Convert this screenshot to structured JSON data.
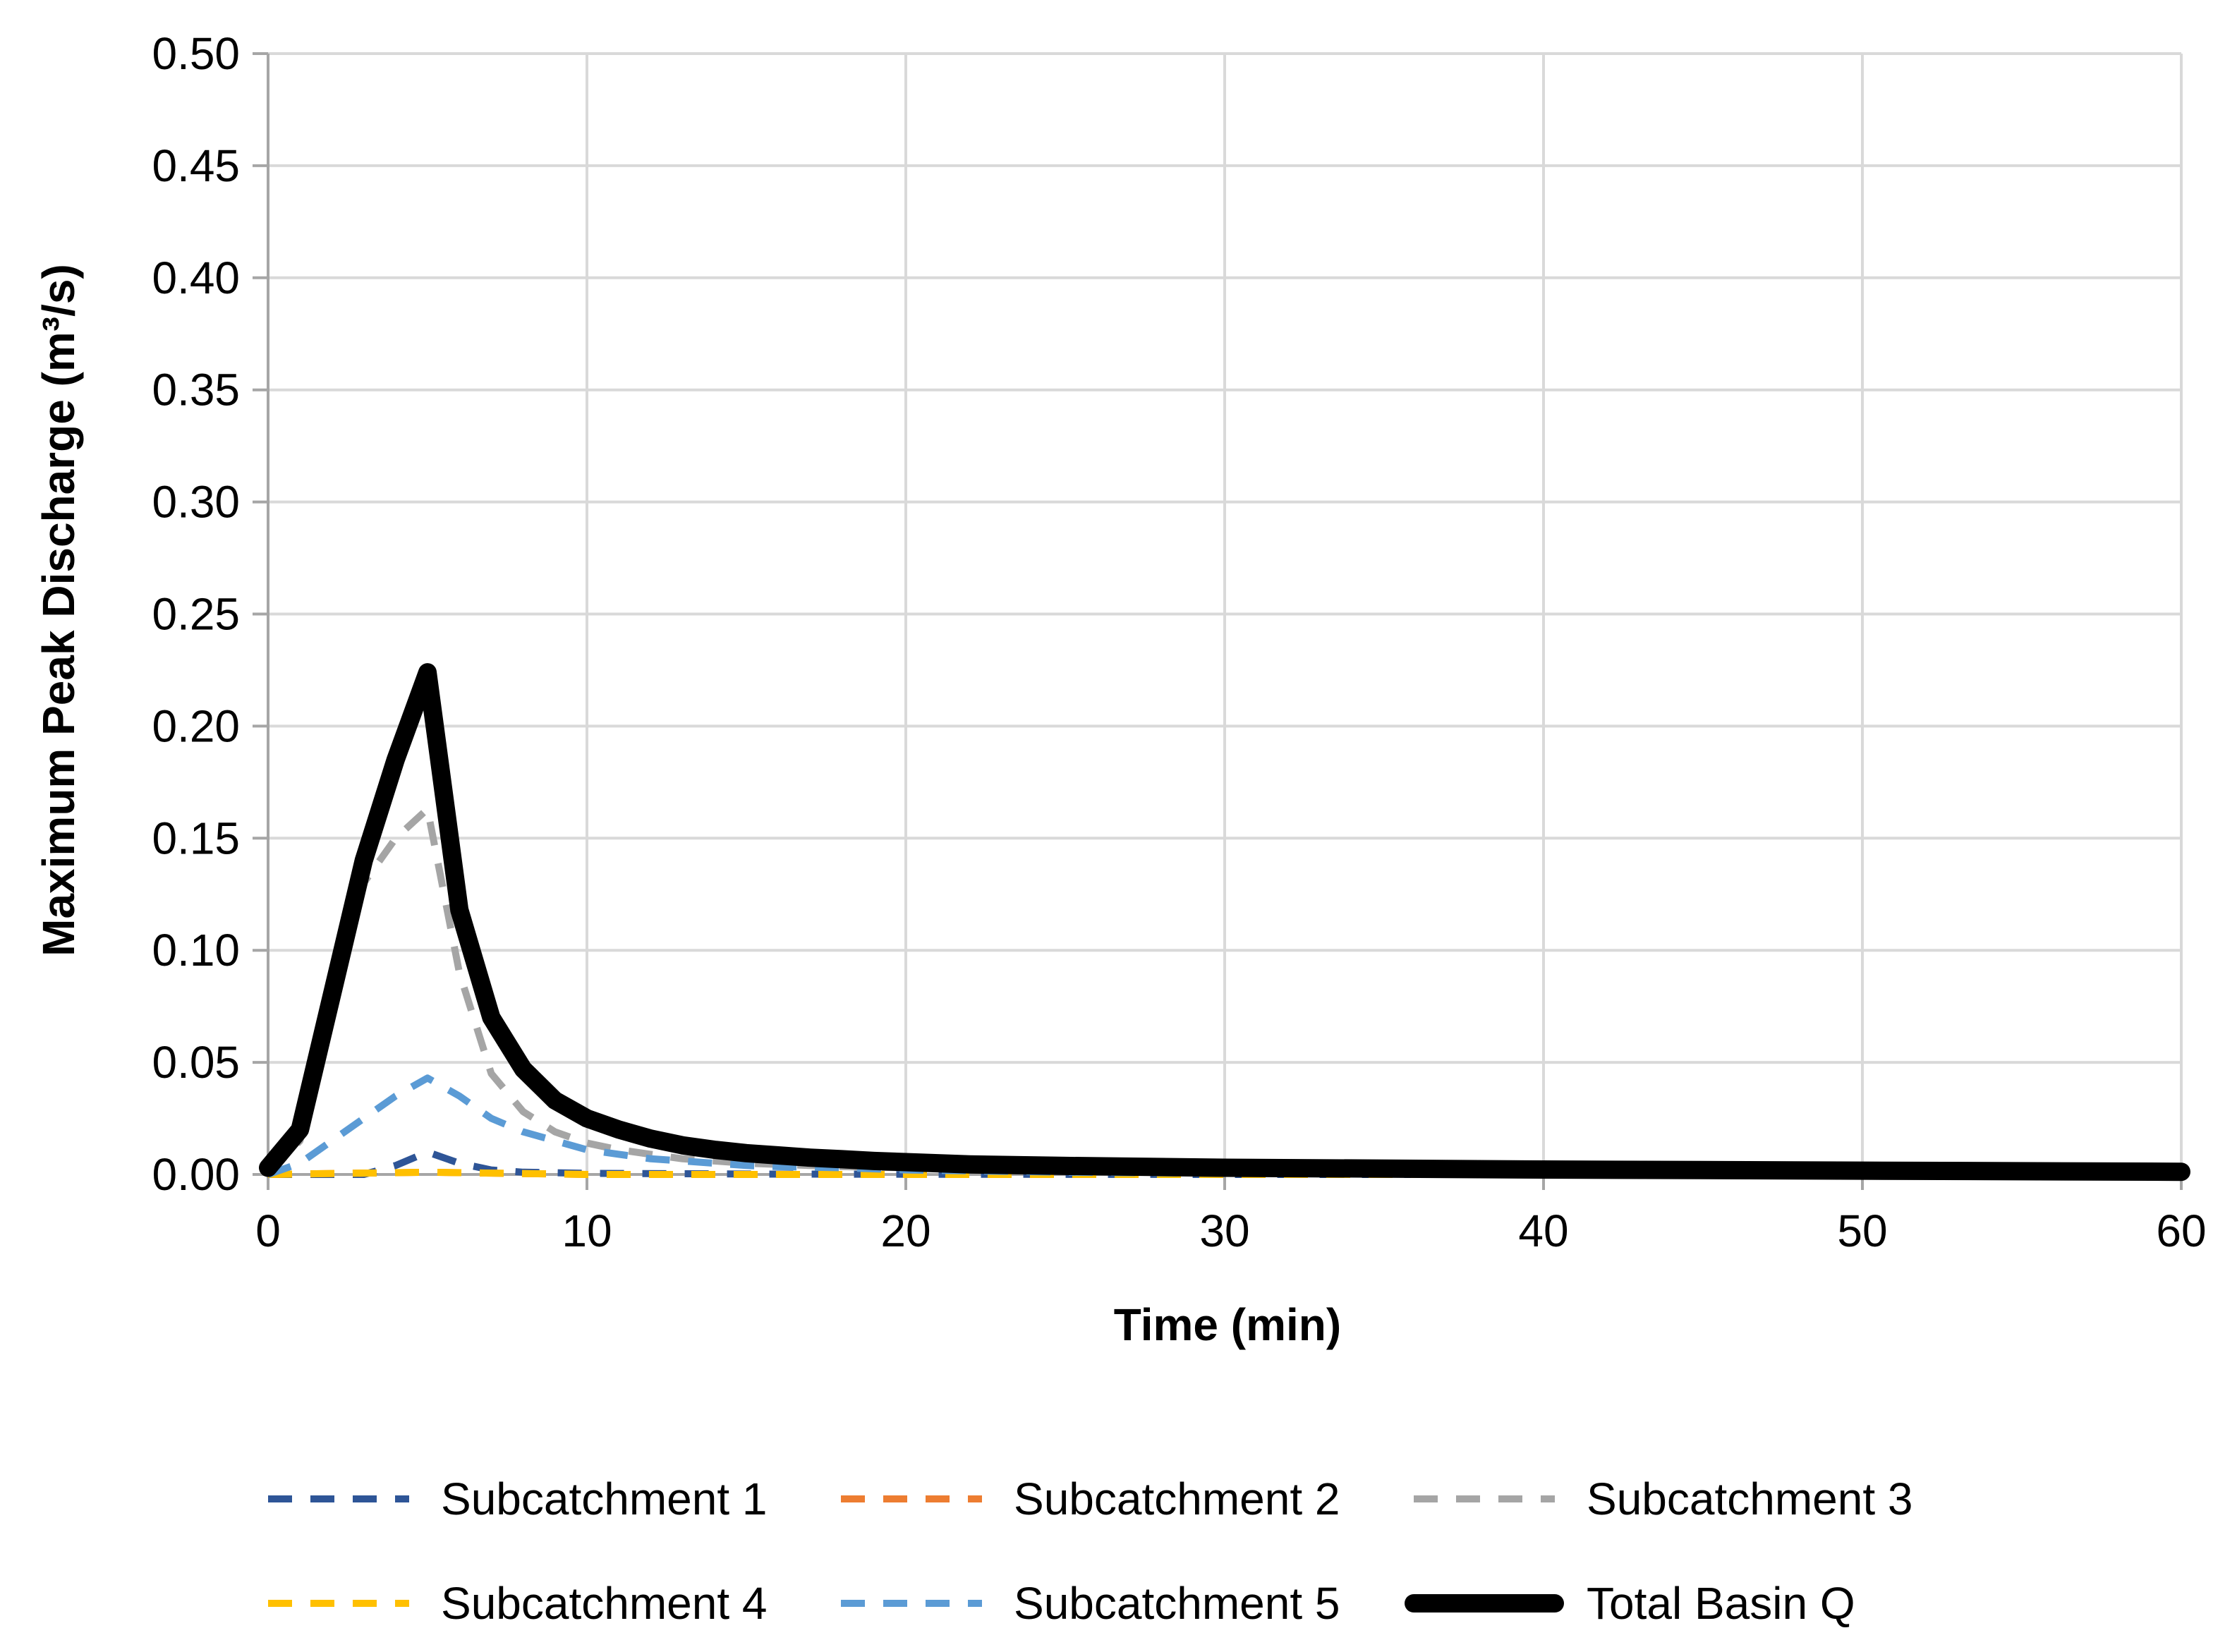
{
  "chart_data": {
    "type": "line",
    "xlabel": "Time (min)",
    "ylabel": "Maximum Peak Discharge (m³/s)",
    "xlim": [
      0,
      60
    ],
    "ylim": [
      0,
      0.5
    ],
    "xticks": [
      "0",
      "10",
      "20",
      "30",
      "40",
      "50",
      "60"
    ],
    "yticks": [
      "0.00",
      "0.05",
      "0.10",
      "0.15",
      "0.20",
      "0.25",
      "0.30",
      "0.35",
      "0.40",
      "0.45",
      "0.50"
    ],
    "grid": true,
    "legend_position": "bottom",
    "series": [
      {
        "name": "Subcatchment 1",
        "color": "#2E5597",
        "dash": "dashed",
        "x": [
          0,
          1,
          2,
          3,
          4,
          5,
          6,
          7,
          8,
          10,
          15,
          20,
          30,
          60
        ],
        "y": [
          0,
          0,
          0,
          0,
          0.004,
          0.01,
          0.005,
          0.002,
          0.001,
          0.0005,
          0.0002,
          0.0001,
          0,
          0
        ]
      },
      {
        "name": "Subcatchment 2",
        "color": "#ED7D31",
        "dash": "dashed",
        "x": [
          0,
          5,
          10,
          20,
          30,
          60
        ],
        "y": [
          0,
          0.001,
          0,
          0,
          0,
          0
        ]
      },
      {
        "name": "Subcatchment 3",
        "color": "#A5A5A5",
        "dash": "dashed",
        "x": [
          0,
          1,
          2,
          3,
          4,
          5,
          6,
          7,
          8,
          9,
          10,
          11,
          12,
          13,
          14,
          15,
          16,
          17,
          18,
          20,
          22,
          25,
          30,
          40,
          60
        ],
        "y": [
          0,
          0.015,
          0.08,
          0.13,
          0.15,
          0.163,
          0.09,
          0.045,
          0.028,
          0.019,
          0.014,
          0.011,
          0.009,
          0.007,
          0.006,
          0.005,
          0.0045,
          0.004,
          0.0035,
          0.003,
          0.0025,
          0.002,
          0.0015,
          0.001,
          0.0005
        ]
      },
      {
        "name": "Subcatchment 4",
        "color": "#FFC000",
        "dash": "dashed",
        "x": [
          0,
          5,
          10,
          20,
          30,
          60
        ],
        "y": [
          0,
          0.001,
          0,
          0,
          0,
          0
        ]
      },
      {
        "name": "Subcatchment 5",
        "color": "#5B9BD5",
        "dash": "dashed",
        "x": [
          0,
          1,
          2,
          3,
          4,
          5,
          6,
          7,
          8,
          9,
          10,
          11,
          12,
          13,
          14,
          15,
          16,
          18,
          20,
          25,
          30,
          60
        ],
        "y": [
          0,
          0.005,
          0.015,
          0.025,
          0.035,
          0.043,
          0.035,
          0.025,
          0.019,
          0.015,
          0.011,
          0.009,
          0.007,
          0.006,
          0.005,
          0.004,
          0.0035,
          0.003,
          0.002,
          0.001,
          0.0005,
          0
        ]
      },
      {
        "name": "Total Basin Q",
        "color": "#000000",
        "dash": "solid",
        "x": [
          0,
          1,
          2,
          3,
          4,
          5,
          6,
          7,
          8,
          9,
          10,
          11,
          12,
          13,
          14,
          15,
          16,
          17,
          18,
          19,
          20,
          22,
          25,
          30,
          40,
          50,
          60
        ],
        "y": [
          0.003,
          0.02,
          0.08,
          0.14,
          0.185,
          0.224,
          0.118,
          0.07,
          0.047,
          0.033,
          0.025,
          0.02,
          0.016,
          0.013,
          0.011,
          0.0095,
          0.0085,
          0.0075,
          0.0068,
          0.006,
          0.0055,
          0.0045,
          0.0038,
          0.003,
          0.0022,
          0.0017,
          0.0012
        ]
      }
    ]
  }
}
